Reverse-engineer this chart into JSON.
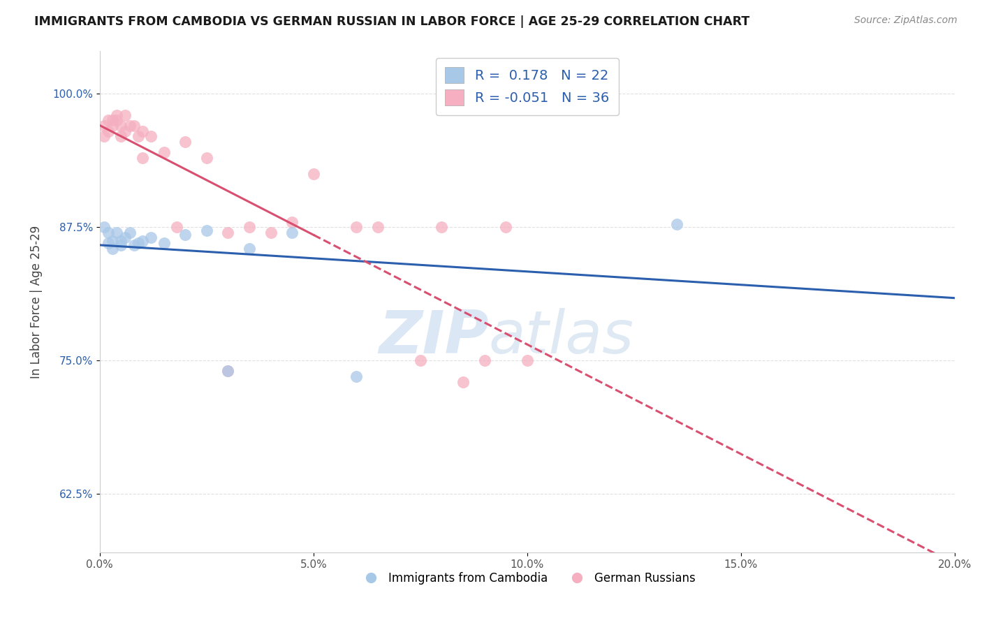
{
  "title": "IMMIGRANTS FROM CAMBODIA VS GERMAN RUSSIAN IN LABOR FORCE | AGE 25-29 CORRELATION CHART",
  "source": "Source: ZipAtlas.com",
  "xlabel": "",
  "ylabel": "In Labor Force | Age 25-29",
  "xlim": [
    0.0,
    0.2
  ],
  "ylim": [
    0.57,
    1.04
  ],
  "yticks": [
    0.625,
    0.75,
    0.875,
    1.0
  ],
  "ytick_labels": [
    "62.5%",
    "75.0%",
    "87.5%",
    "100.0%"
  ],
  "xticks": [
    0.0,
    0.05,
    0.1,
    0.15,
    0.2
  ],
  "xtick_labels": [
    "0.0%",
    "5.0%",
    "10.0%",
    "15.0%",
    "20.0%"
  ],
  "cambodia_x": [
    0.001,
    0.002,
    0.002,
    0.003,
    0.003,
    0.004,
    0.005,
    0.005,
    0.006,
    0.007,
    0.008,
    0.009,
    0.01,
    0.012,
    0.015,
    0.02,
    0.025,
    0.035,
    0.045,
    0.06,
    0.135,
    0.03
  ],
  "cambodia_y": [
    0.875,
    0.87,
    0.86,
    0.862,
    0.855,
    0.87,
    0.862,
    0.858,
    0.865,
    0.87,
    0.858,
    0.86,
    0.862,
    0.865,
    0.86,
    0.868,
    0.872,
    0.855,
    0.87,
    0.735,
    0.878,
    0.74
  ],
  "german_x": [
    0.001,
    0.001,
    0.002,
    0.002,
    0.003,
    0.003,
    0.004,
    0.004,
    0.005,
    0.005,
    0.006,
    0.006,
    0.007,
    0.008,
    0.009,
    0.01,
    0.01,
    0.012,
    0.015,
    0.018,
    0.02,
    0.025,
    0.03,
    0.035,
    0.04,
    0.045,
    0.05,
    0.06,
    0.065,
    0.08,
    0.09,
    0.095,
    0.1,
    0.085,
    0.075,
    0.03
  ],
  "german_y": [
    0.97,
    0.96,
    0.975,
    0.965,
    0.975,
    0.97,
    0.98,
    0.975,
    0.96,
    0.97,
    0.965,
    0.98,
    0.97,
    0.97,
    0.96,
    0.965,
    0.94,
    0.96,
    0.945,
    0.875,
    0.955,
    0.94,
    0.87,
    0.875,
    0.87,
    0.88,
    0.925,
    0.875,
    0.875,
    0.875,
    0.75,
    0.875,
    0.75,
    0.73,
    0.75,
    0.74
  ],
  "cambodia_R": 0.178,
  "cambodia_N": 22,
  "german_R": -0.051,
  "german_N": 36,
  "cambodia_color": "#a8c8e8",
  "german_color": "#f5afc0",
  "cambodia_line_color": "#2b5fad",
  "german_line_color": "#d94f70",
  "background_color": "#ffffff",
  "grid_color": "#dddddd",
  "watermark_zip": "ZIP",
  "watermark_atlas": "atlas",
  "legend_label_cambodia": "Immigrants from Cambodia",
  "legend_label_german": "German Russians"
}
